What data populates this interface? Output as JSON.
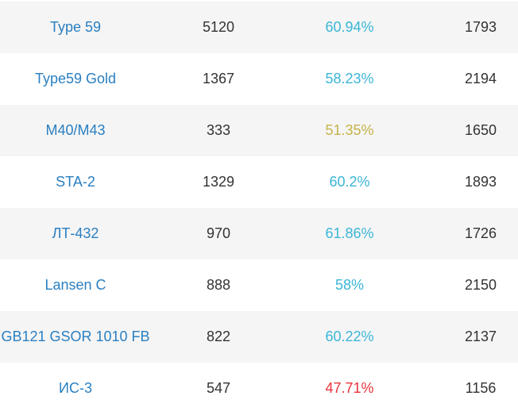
{
  "colors": {
    "name_link": "#2a7fc1",
    "winrate_good": "#3bb6d6",
    "winrate_average": "#c5b34a",
    "winrate_bad": "#e8333a",
    "text": "#333333",
    "row_stripe": "#f5f5f5"
  },
  "rows": [
    {
      "name": "Type 59",
      "battles": "5120",
      "winrate": "60.94%",
      "rating": "1793"
    },
    {
      "name": "Type59 Gold",
      "battles": "1367",
      "winrate": "58.23%",
      "rating": "2194"
    },
    {
      "name": "M40/M43",
      "battles": "333",
      "winrate": "51.35%",
      "rating": "1650"
    },
    {
      "name": "STA-2",
      "battles": "1329",
      "winrate": "60.2%",
      "rating": "1893"
    },
    {
      "name": "ЛТ-432",
      "battles": "970",
      "winrate": "61.86%",
      "rating": "1726"
    },
    {
      "name": "Lansen C",
      "battles": "888",
      "winrate": "58%",
      "rating": "2150"
    },
    {
      "name": "GB121 GSOR 1010 FB",
      "battles": "822",
      "winrate": "60.22%",
      "rating": "2137"
    },
    {
      "name": "ИС-3",
      "battles": "547",
      "winrate": "47.71%",
      "rating": "1156"
    }
  ]
}
